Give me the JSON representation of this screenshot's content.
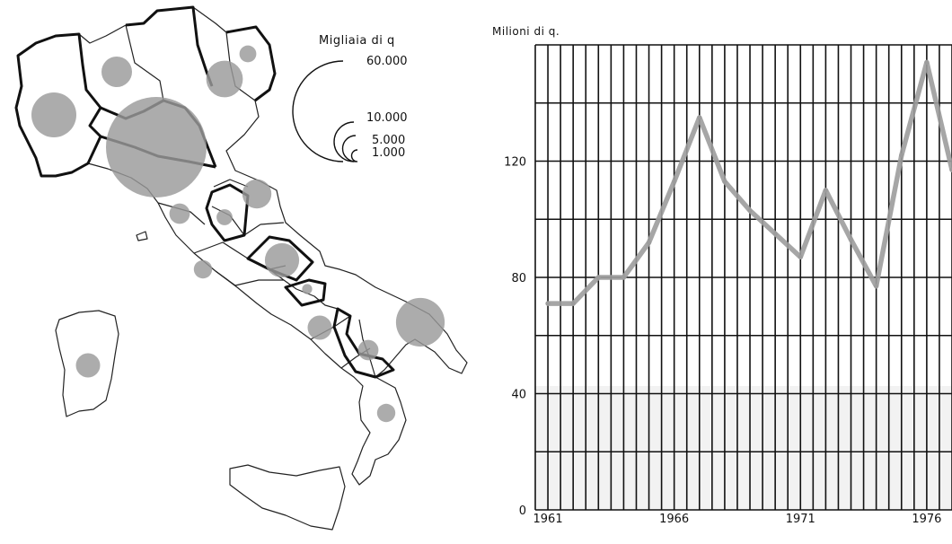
{
  "map_legend": {
    "unit_label": "Migliaia di q",
    "size_labels": [
      "60.000",
      "10.000",
      "5.000",
      "1.000"
    ],
    "size_values": [
      60000,
      10000,
      5000,
      1000
    ]
  },
  "map_regions": [
    {
      "value": 12000
    },
    {
      "value": 5500
    },
    {
      "value": 2500
    },
    {
      "value": 2000
    },
    {
      "value": 60000
    },
    {
      "value": 8000
    },
    {
      "value": 5000
    },
    {
      "value": 1500
    },
    {
      "value": 7000
    },
    {
      "value": 3500
    },
    {
      "value": 600
    },
    {
      "value": 1700
    },
    {
      "value": 2500
    },
    {
      "value": 14000
    },
    {
      "value": 2000
    },
    {
      "value": 3500
    }
  ],
  "chart_data": {
    "type": "line",
    "ylabel": "Milioni di q.",
    "x": [
      1961,
      1962,
      1963,
      1964,
      1965,
      1966,
      1967,
      1968,
      1969,
      1970,
      1971,
      1972,
      1973,
      1974,
      1975,
      1976,
      1977
    ],
    "series": [
      {
        "values": [
          71,
          71,
          80,
          80,
          92,
          113,
          135,
          113,
          103,
          95,
          87,
          110,
          93,
          77,
          122,
          154,
          117
        ]
      }
    ],
    "xlim": [
      1960.5,
      1977
    ],
    "ylim": [
      0,
      160
    ],
    "y_ticks": [
      0,
      40,
      80,
      120
    ],
    "x_tick_labels": [
      "1961",
      "1966",
      "1971",
      "1976"
    ],
    "x_tick_values": [
      1961,
      1966,
      1971,
      1976
    ],
    "grid": true
  },
  "colors": {
    "bubble": "#9a9a9a",
    "line": "#9c9c9c",
    "grid": "#111111"
  }
}
